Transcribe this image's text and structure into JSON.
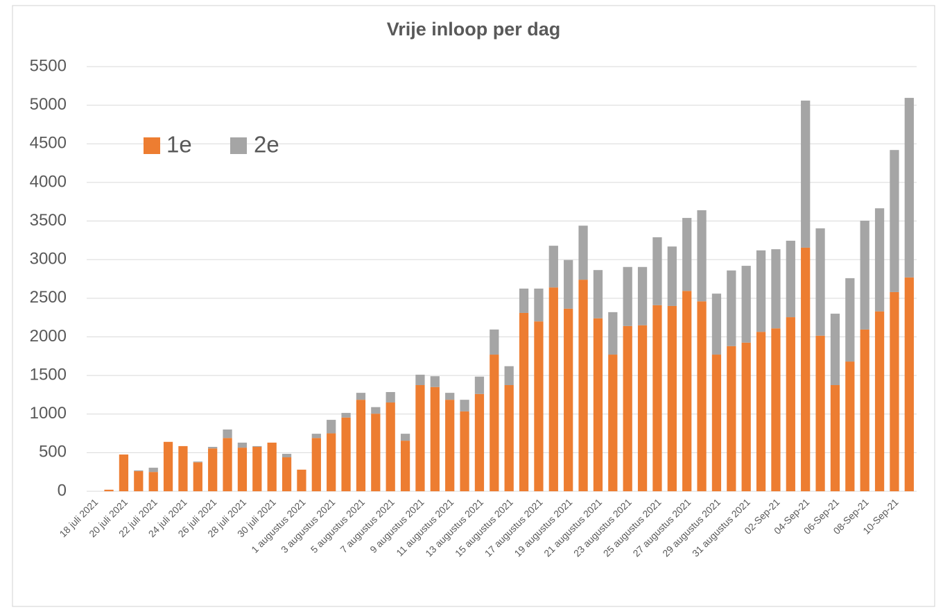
{
  "chart_data": {
    "type": "stacked_bar",
    "title": "Vrije inloop per dag",
    "categories": [
      "18 juli 2021",
      null,
      "20 juli 2021",
      null,
      "22 juli 2021",
      null,
      "24 juli 2021",
      null,
      "26 juli 2021",
      null,
      "28 juli 2021",
      null,
      "30 juli 2021",
      null,
      "1 augustus 2021",
      null,
      "3 augustus 2021",
      null,
      "5 augustus 2021",
      null,
      "7 augustus 2021",
      null,
      "9 augustus 2021",
      null,
      "11 augustus 2021",
      null,
      "13 augustus 2021",
      null,
      "15 augustus 2021",
      null,
      "17 augustus 2021",
      null,
      "19 augustus 2021",
      null,
      "21 augustus 2021",
      null,
      "23 augustus 2021",
      null,
      "25 augustus 2021",
      null,
      "27 augustus 2021",
      null,
      "29 augustus 2021",
      null,
      "31 augustus 2021",
      null,
      "02-Sep-21",
      null,
      "04-Sep-21",
      null,
      "06-Sep-21",
      null,
      "08-Sep-21",
      null,
      "10-Sep-21",
      null
    ],
    "series": [
      {
        "name": "1e",
        "color": "#ed7d31",
        "values": [
          0,
          20,
          476,
          260,
          250,
          640,
          585,
          375,
          555,
          690,
          565,
          575,
          630,
          440,
          280,
          690,
          750,
          955,
          1185,
          1005,
          1150,
          655,
          1375,
          1350,
          1185,
          1035,
          1260,
          1770,
          1375,
          2310,
          2200,
          2640,
          2365,
          2740,
          2240,
          1770,
          2140,
          2150,
          2410,
          2400,
          2595,
          2460,
          1770,
          1880,
          1925,
          2065,
          2110,
          2255,
          3155,
          2015,
          1375,
          1680,
          2095,
          2330,
          2580,
          2770
        ]
      },
      {
        "name": "2e",
        "color": "#a5a5a5",
        "values": [
          0,
          0,
          0,
          10,
          55,
          0,
          0,
          10,
          20,
          110,
          65,
          10,
          0,
          45,
          0,
          55,
          175,
          60,
          90,
          85,
          135,
          90,
          135,
          140,
          90,
          150,
          225,
          325,
          245,
          315,
          425,
          540,
          630,
          700,
          625,
          550,
          765,
          755,
          880,
          770,
          945,
          1180,
          790,
          980,
          995,
          1055,
          1025,
          990,
          1905,
          1390,
          925,
          1080,
          1410,
          1335,
          1840,
          2325
        ]
      }
    ],
    "ylim": [
      0,
      5500
    ],
    "yticks": [
      0,
      500,
      1000,
      1500,
      2000,
      2500,
      3000,
      3500,
      4000,
      4500,
      5000,
      5500
    ],
    "grid": true,
    "legend": "top-left"
  }
}
